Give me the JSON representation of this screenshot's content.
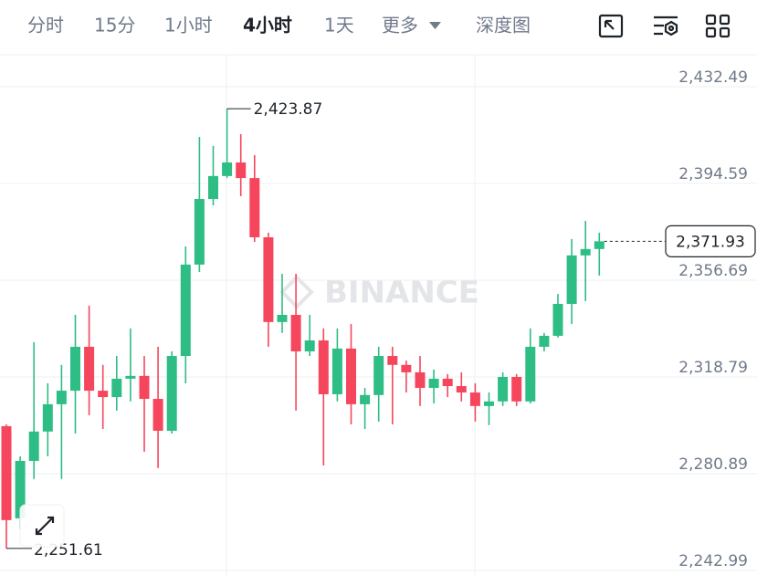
{
  "toolbar": {
    "tabs": [
      "分时",
      "15分",
      "1小时",
      "4小时",
      "1天",
      "更多",
      "深度图"
    ],
    "active": 3
  },
  "chart_data": {
    "type": "candlestick",
    "watermark": "BINANCE",
    "up_color": "#2ebd85",
    "down_color": "#f6465d",
    "grid": true,
    "ylim": [
      2241.2,
      2445.0
    ],
    "yticks": [
      {
        "value": 2432.49,
        "label": "2,432.49"
      },
      {
        "value": 2394.59,
        "label": "2,394.59"
      },
      {
        "value": 2356.69,
        "label": "2,356.69"
      },
      {
        "value": 2318.79,
        "label": "2,318.79"
      },
      {
        "value": 2280.89,
        "label": "2,280.89"
      },
      {
        "value": 2242.99,
        "label": "2,242.99"
      }
    ],
    "open": [
      2299.5,
      2263.4,
      2285.9,
      2297.4,
      2308.1,
      2313.4,
      2330.6,
      2313.4,
      2310.9,
      2318.1,
      2319.2,
      2310.2,
      2297.7,
      2327.0,
      2362.8,
      2388.5,
      2397.5,
      2402.8,
      2396.7,
      2373.5,
      2340.3,
      2343.1,
      2328.8,
      2333.1,
      2312.0,
      2329.9,
      2308.1,
      2311.7,
      2327.0,
      2323.5,
      2320.6,
      2314.5,
      2318.1,
      2315.2,
      2312.7,
      2307.4,
      2309.2,
      2318.8,
      2309.2,
      2330.6,
      2334.9,
      2347.4,
      2366.4,
      2368.9
    ],
    "high": [
      2300.2,
      2287.7,
      2332.4,
      2316.3,
      2323.5,
      2343.1,
      2346.7,
      2323.5,
      2327.0,
      2337.8,
      2327.0,
      2330.6,
      2328.8,
      2369.9,
      2412.8,
      2409.3,
      2423.87,
      2413.9,
      2405.7,
      2375.3,
      2359.2,
      2359.2,
      2343.1,
      2337.8,
      2337.8,
      2339.5,
      2314.5,
      2330.6,
      2330.6,
      2325.2,
      2327.0,
      2321.7,
      2319.9,
      2320.6,
      2316.3,
      2312.7,
      2320.6,
      2319.9,
      2337.8,
      2336.0,
      2351.3,
      2372.8,
      2379.9,
      2375.3
    ],
    "low": [
      2251.61,
      2259.1,
      2278.8,
      2287.7,
      2278.8,
      2296.6,
      2303.8,
      2298.4,
      2305.6,
      2309.2,
      2289.5,
      2283.1,
      2296.6,
      2316.3,
      2359.9,
      2386.0,
      2396.7,
      2389.6,
      2371.7,
      2330.6,
      2336.0,
      2305.6,
      2327.0,
      2284.1,
      2309.2,
      2300.2,
      2298.4,
      2301.3,
      2300.2,
      2312.7,
      2307.4,
      2308.4,
      2310.9,
      2309.2,
      2301.3,
      2299.9,
      2307.4,
      2307.4,
      2308.4,
      2328.8,
      2334.2,
      2339.5,
      2348.5,
      2358.5
    ],
    "close": [
      2262.7,
      2285.9,
      2297.4,
      2308.1,
      2313.4,
      2330.6,
      2313.4,
      2310.9,
      2318.1,
      2319.2,
      2310.2,
      2297.7,
      2327.0,
      2362.8,
      2388.5,
      2397.5,
      2402.8,
      2396.7,
      2373.5,
      2340.3,
      2343.1,
      2328.8,
      2333.1,
      2312.0,
      2329.9,
      2308.1,
      2311.7,
      2327.0,
      2323.5,
      2320.6,
      2314.5,
      2318.1,
      2315.2,
      2312.7,
      2307.4,
      2309.2,
      2318.8,
      2309.2,
      2330.6,
      2334.9,
      2347.4,
      2366.4,
      2368.9,
      2371.93
    ],
    "high_label": {
      "value": 2423.87,
      "label": "2,423.87"
    },
    "low_label": {
      "value": 2251.61,
      "label": "2,251.61"
    },
    "last_price": {
      "value": 2371.93,
      "label": "2,371.93"
    }
  }
}
